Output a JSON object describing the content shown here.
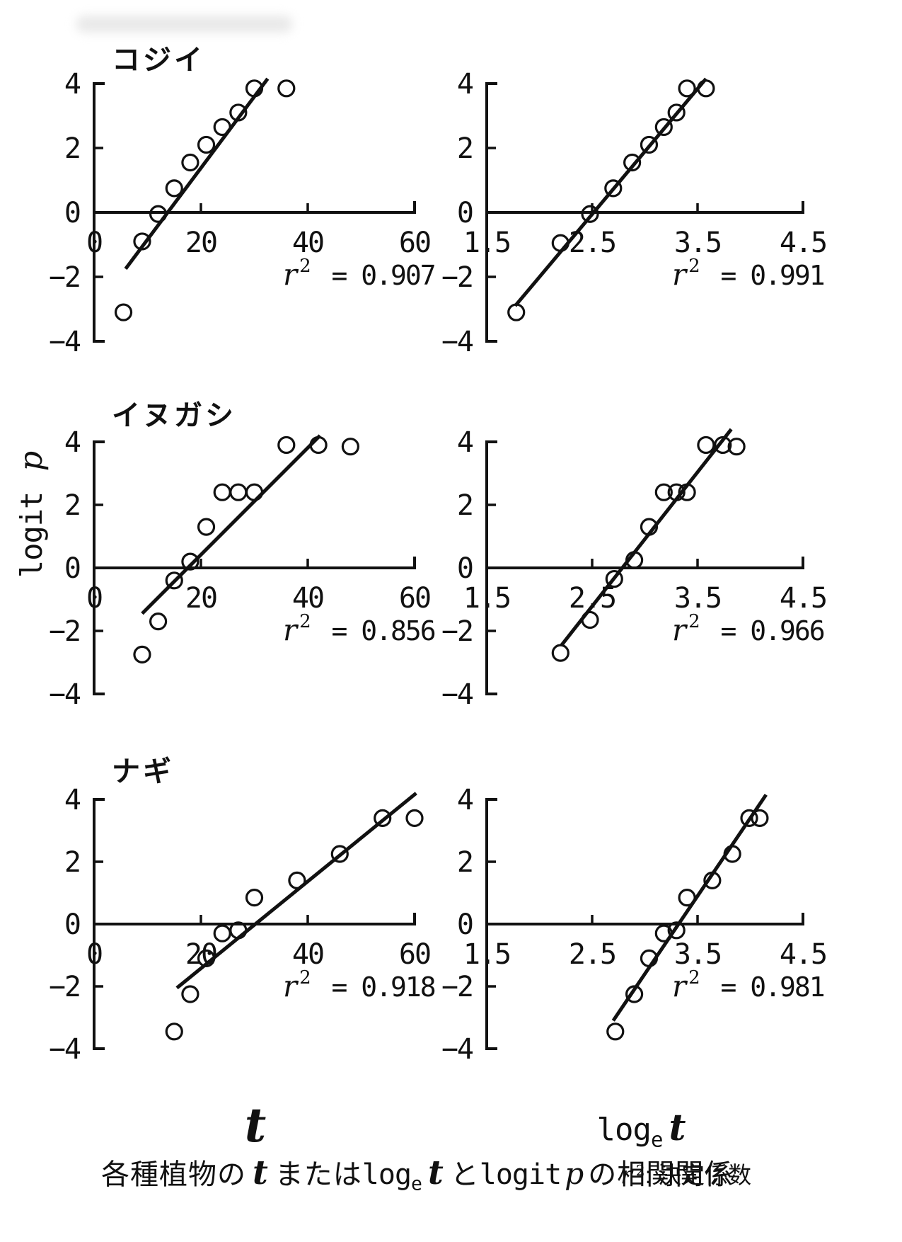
{
  "figure": {
    "ylabel_segments": [
      {
        "text": "logit",
        "style": "mono"
      },
      {
        "text": " ",
        "style": "mono"
      },
      {
        "text": "p",
        "style": "vari"
      }
    ],
    "xaxis_title_t_segments": [
      {
        "text": "t",
        "style": "var"
      }
    ],
    "xaxis_title_loget_segments": [
      {
        "text": "log",
        "style": "mono"
      },
      {
        "text": "e",
        "style": "sub"
      },
      {
        "text": "t",
        "style": "var"
      }
    ],
    "caption_segments": [
      {
        "text": "各種植物の",
        "style": "cjk"
      },
      {
        "text": "t",
        "style": "var"
      },
      {
        "text": "または",
        "style": "cjk"
      },
      {
        "text": "log",
        "style": "mono"
      },
      {
        "text": "e",
        "style": "sub"
      },
      {
        "text": "t",
        "style": "var"
      },
      {
        "text": "と",
        "style": "cjk"
      },
      {
        "text": "logit",
        "style": "mono"
      },
      {
        "text": "p",
        "style": "vari"
      },
      {
        "text": "の相関関係",
        "style": "cjk"
      }
    ],
    "caption_note_segments": [
      {
        "text": "r",
        "style": "vari"
      },
      {
        "text": "2",
        "style": "sup"
      },
      {
        "text": ": 決定係数",
        "style": "cjk"
      }
    ],
    "r2_symbol": "r",
    "r2_sup": "2",
    "r2_equals": "="
  },
  "chart_data": [
    {
      "id": "kojii-t",
      "type": "scatter",
      "species": "コジイ",
      "title": "コジイ",
      "x_variable": "t",
      "r2": "0.907",
      "xlim": [
        0,
        60
      ],
      "ylim": [
        -4,
        4
      ],
      "xticks": [
        {
          "v": 0,
          "label": "0"
        },
        {
          "v": 20,
          "label": "20"
        },
        {
          "v": 40,
          "label": "40"
        },
        {
          "v": 60,
          "label": "60"
        }
      ],
      "yticks": [
        {
          "v": 4,
          "label": "4"
        },
        {
          "v": 2,
          "label": "2"
        },
        {
          "v": 0,
          "label": "0"
        },
        {
          "v": -2,
          "label": "−2"
        },
        {
          "v": -4,
          "label": "−4"
        }
      ],
      "points": [
        [
          5.5,
          -3.1
        ],
        [
          9,
          -0.9
        ],
        [
          12,
          -0.05
        ],
        [
          15,
          0.75
        ],
        [
          18,
          1.55
        ],
        [
          21,
          2.1
        ],
        [
          24,
          2.65
        ],
        [
          27,
          3.1
        ],
        [
          30,
          3.85
        ],
        [
          36,
          3.85
        ]
      ],
      "trendline": [
        [
          5.9,
          -1.75
        ],
        [
          32.5,
          4.15
        ]
      ]
    },
    {
      "id": "kojii-loget",
      "type": "scatter",
      "species": "コジイ",
      "x_variable": "log_e t",
      "r2": "0.991",
      "xlim": [
        1.5,
        4.5
      ],
      "ylim": [
        -4,
        4
      ],
      "xticks": [
        {
          "v": 1.5,
          "label": "1.5"
        },
        {
          "v": 2.5,
          "label": "2.5"
        },
        {
          "v": 3.5,
          "label": "3.5"
        },
        {
          "v": 4.5,
          "label": "4.5"
        }
      ],
      "yticks": [
        {
          "v": 4,
          "label": "4"
        },
        {
          "v": 2,
          "label": "2"
        },
        {
          "v": 0,
          "label": "0"
        },
        {
          "v": -2,
          "label": "−2"
        },
        {
          "v": -4,
          "label": "−4"
        }
      ],
      "points": [
        [
          1.78,
          -3.1
        ],
        [
          2.2,
          -0.95
        ],
        [
          2.48,
          -0.05
        ],
        [
          2.7,
          0.75
        ],
        [
          2.88,
          1.55
        ],
        [
          3.04,
          2.1
        ],
        [
          3.18,
          2.65
        ],
        [
          3.3,
          3.1
        ],
        [
          3.4,
          3.85
        ],
        [
          3.58,
          3.85
        ]
      ],
      "trendline": [
        [
          1.77,
          -2.9
        ],
        [
          3.58,
          4.15
        ]
      ]
    },
    {
      "id": "inugashi-t",
      "type": "scatter",
      "species": "イヌガシ",
      "title": "イヌガシ",
      "x_variable": "t",
      "r2": "0.856",
      "xlim": [
        0,
        60
      ],
      "ylim": [
        -4,
        4
      ],
      "xticks": [
        {
          "v": 0,
          "label": "0"
        },
        {
          "v": 20,
          "label": "20"
        },
        {
          "v": 40,
          "label": "40"
        },
        {
          "v": 60,
          "label": "60"
        }
      ],
      "yticks": [
        {
          "v": 4,
          "label": "4"
        },
        {
          "v": 2,
          "label": "2"
        },
        {
          "v": 0,
          "label": "0"
        },
        {
          "v": -2,
          "label": "−2"
        },
        {
          "v": -4,
          "label": "−4"
        }
      ],
      "points": [
        [
          9,
          -2.75
        ],
        [
          12,
          -1.7
        ],
        [
          15,
          -0.4
        ],
        [
          18,
          0.2
        ],
        [
          21,
          1.3
        ],
        [
          24,
          2.4
        ],
        [
          27,
          2.4
        ],
        [
          30,
          2.4
        ],
        [
          36,
          3.9
        ],
        [
          42,
          3.9
        ],
        [
          48,
          3.85
        ]
      ],
      "trendline": [
        [
          9,
          -1.45
        ],
        [
          42.3,
          4.2
        ]
      ]
    },
    {
      "id": "inugashi-loget",
      "type": "scatter",
      "species": "イヌガシ",
      "x_variable": "log_e t",
      "r2": "0.966",
      "xlim": [
        1.5,
        4.5
      ],
      "ylim": [
        -4,
        4
      ],
      "xticks": [
        {
          "v": 1.5,
          "label": "1.5"
        },
        {
          "v": 2.5,
          "label": "2.5"
        },
        {
          "v": 3.5,
          "label": "3.5"
        },
        {
          "v": 4.5,
          "label": "4.5"
        }
      ],
      "yticks": [
        {
          "v": 4,
          "label": "4"
        },
        {
          "v": 2,
          "label": "2"
        },
        {
          "v": 0,
          "label": "0"
        },
        {
          "v": -2,
          "label": "−2"
        },
        {
          "v": -4,
          "label": "−4"
        }
      ],
      "points": [
        [
          2.2,
          -2.7
        ],
        [
          2.48,
          -1.65
        ],
        [
          2.71,
          -0.35
        ],
        [
          2.9,
          0.25
        ],
        [
          3.04,
          1.3
        ],
        [
          3.18,
          2.4
        ],
        [
          3.3,
          2.4
        ],
        [
          3.4,
          2.4
        ],
        [
          3.58,
          3.9
        ],
        [
          3.74,
          3.9
        ],
        [
          3.87,
          3.85
        ]
      ],
      "trendline": [
        [
          2.21,
          -2.45
        ],
        [
          3.82,
          4.4
        ]
      ]
    },
    {
      "id": "nagi-t",
      "type": "scatter",
      "species": "ナギ",
      "title": "ナギ",
      "x_variable": "t",
      "r2": "0.918",
      "xlim": [
        0,
        60
      ],
      "ylim": [
        -4,
        4
      ],
      "xticks": [
        {
          "v": 0,
          "label": "0"
        },
        {
          "v": 20,
          "label": "20"
        },
        {
          "v": 40,
          "label": "40"
        },
        {
          "v": 60,
          "label": "60"
        }
      ],
      "yticks": [
        {
          "v": 4,
          "label": "4"
        },
        {
          "v": 2,
          "label": "2"
        },
        {
          "v": 0,
          "label": "0"
        },
        {
          "v": -2,
          "label": "−2"
        },
        {
          "v": -4,
          "label": "−4"
        }
      ],
      "points": [
        [
          15,
          -3.45
        ],
        [
          18,
          -2.25
        ],
        [
          21,
          -1.1
        ],
        [
          24,
          -0.3
        ],
        [
          27,
          -0.2
        ],
        [
          30,
          0.85
        ],
        [
          38,
          1.4
        ],
        [
          46,
          2.25
        ],
        [
          54,
          3.4
        ],
        [
          60,
          3.4
        ]
      ],
      "trendline": [
        [
          15.5,
          -2.05
        ],
        [
          60.3,
          4.2
        ]
      ]
    },
    {
      "id": "nagi-loget",
      "type": "scatter",
      "species": "ナギ",
      "x_variable": "log_e t",
      "r2": "0.981",
      "xlim": [
        1.5,
        4.5
      ],
      "ylim": [
        -4,
        4
      ],
      "xticks": [
        {
          "v": 1.5,
          "label": "1.5"
        },
        {
          "v": 2.5,
          "label": "2.5"
        },
        {
          "v": 3.5,
          "label": "3.5"
        },
        {
          "v": 4.5,
          "label": "4.5"
        }
      ],
      "yticks": [
        {
          "v": 4,
          "label": "4"
        },
        {
          "v": 2,
          "label": "2"
        },
        {
          "v": 0,
          "label": "0"
        },
        {
          "v": -2,
          "label": "−2"
        },
        {
          "v": -4,
          "label": "−4"
        }
      ],
      "points": [
        [
          2.72,
          -3.45
        ],
        [
          2.9,
          -2.25
        ],
        [
          3.04,
          -1.1
        ],
        [
          3.18,
          -0.3
        ],
        [
          3.3,
          -0.2
        ],
        [
          3.4,
          0.85
        ],
        [
          3.64,
          1.4
        ],
        [
          3.83,
          2.25
        ],
        [
          3.99,
          3.4
        ],
        [
          4.09,
          3.4
        ]
      ],
      "trendline": [
        [
          2.7,
          -3.1
        ],
        [
          4.15,
          4.15
        ]
      ]
    }
  ]
}
